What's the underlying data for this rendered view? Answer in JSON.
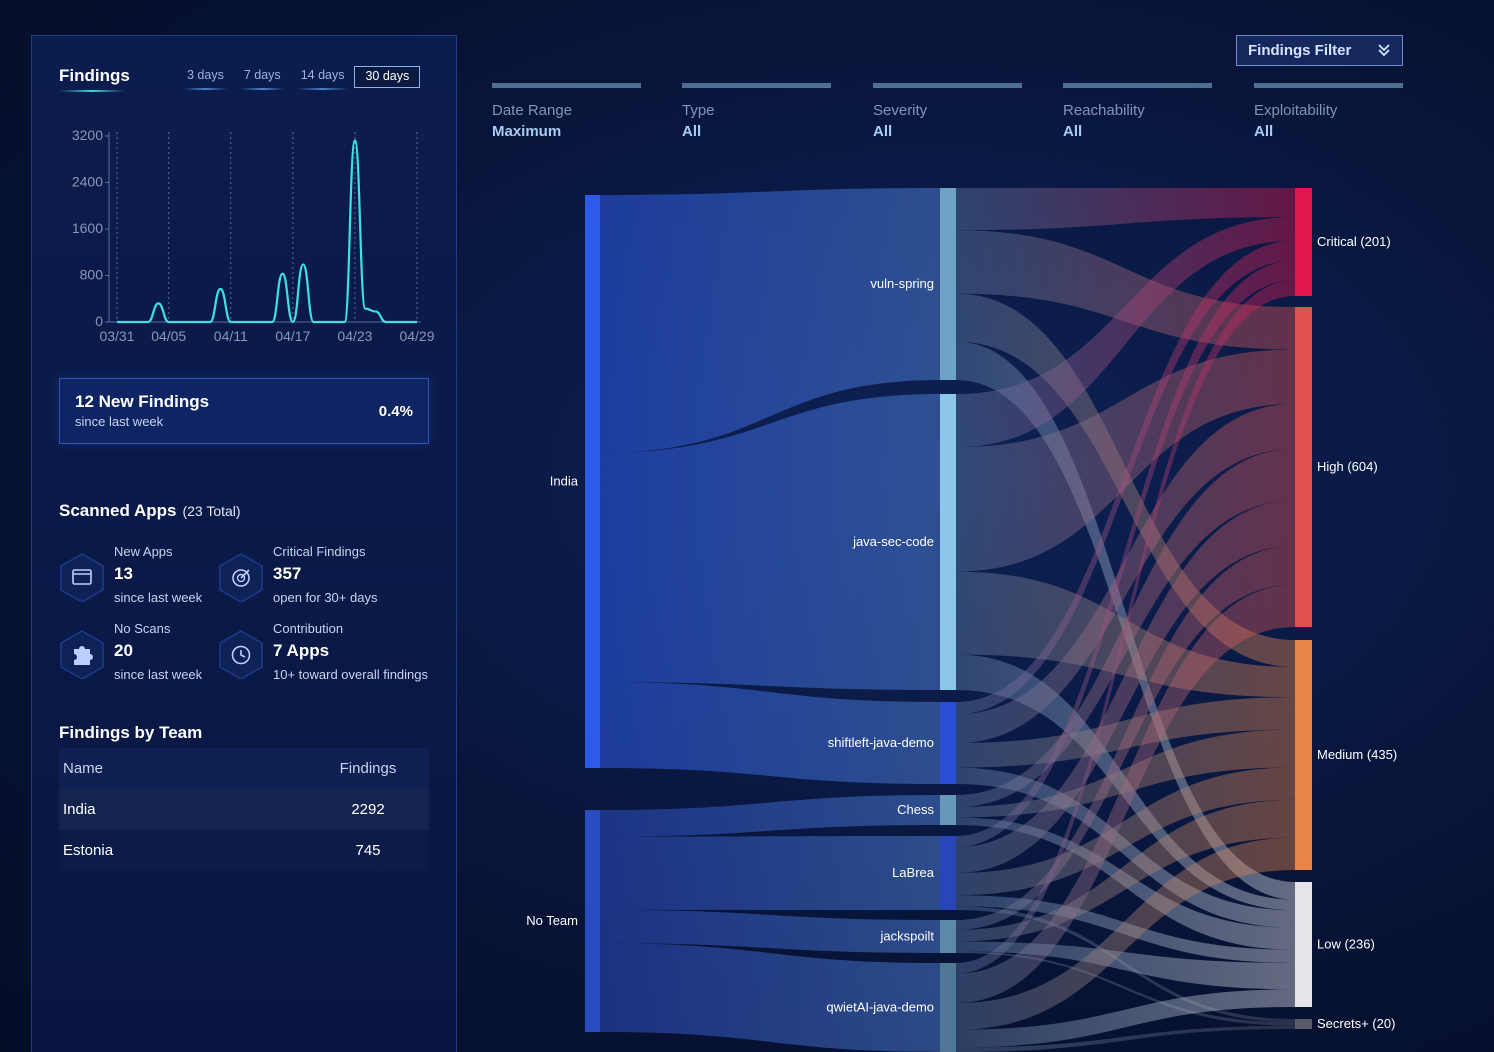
{
  "findings_panel": {
    "title": "Findings",
    "range_tabs": [
      "3 days",
      "7 days",
      "14 days",
      "30 days"
    ],
    "active_range": "30 days",
    "chart_data": {
      "type": "line",
      "x": [
        "03/31",
        "04/01",
        "04/02",
        "04/03",
        "04/04",
        "04/05",
        "04/06",
        "04/07",
        "04/08",
        "04/09",
        "04/10",
        "04/11",
        "04/12",
        "04/13",
        "04/14",
        "04/15",
        "04/16",
        "04/17",
        "04/18",
        "04/19",
        "04/20",
        "04/21",
        "04/22",
        "04/23",
        "04/24",
        "04/25",
        "04/26",
        "04/27",
        "04/28",
        "04/29"
      ],
      "values": [
        0,
        0,
        0,
        0,
        320,
        0,
        0,
        0,
        0,
        0,
        570,
        0,
        0,
        0,
        0,
        0,
        830,
        0,
        990,
        0,
        0,
        0,
        0,
        3120,
        230,
        180,
        0,
        0,
        0,
        0
      ],
      "ylim": [
        0,
        3200
      ],
      "yticks": [
        0,
        800,
        1600,
        2400,
        3200
      ],
      "xtick_labels": [
        "03/31",
        "04/05",
        "04/11",
        "04/17",
        "04/23",
        "04/29"
      ],
      "color": "#3ee0e0",
      "grid": "vertical dotted"
    },
    "new_findings": {
      "title": "12 New Findings",
      "subtitle": "since last week",
      "percent": "0.4%"
    },
    "scanned_apps": {
      "title": "Scanned Apps",
      "total": "(23 Total)",
      "stats": [
        {
          "label": "New Apps",
          "value": "13",
          "sub": "since last week",
          "icon": "window-icon"
        },
        {
          "label": "Critical Findings",
          "value": "357",
          "sub": "open for 30+ days",
          "icon": "target-icon"
        },
        {
          "label": "No Scans",
          "value": "20",
          "sub": "since last week",
          "icon": "puzzle-icon"
        },
        {
          "label": "Contribution",
          "value": "7 Apps",
          "sub": "10+ toward overall findings",
          "icon": "clock-icon"
        }
      ]
    },
    "teams": {
      "title": "Findings by Team",
      "columns": [
        "Name",
        "Findings"
      ],
      "rows": [
        {
          "name": "India",
          "findings": "2292"
        },
        {
          "name": "Estonia",
          "findings": "745"
        }
      ]
    }
  },
  "filter_button": {
    "label": "Findings Filter",
    "icon": "double-chevron-down-icon"
  },
  "facets": [
    {
      "label": "Date Range",
      "value": "Maximum"
    },
    {
      "label": "Type",
      "value": "All"
    },
    {
      "label": "Severity",
      "value": "All"
    },
    {
      "label": "Reachability",
      "value": "All"
    },
    {
      "label": "Exploitability",
      "value": "All"
    }
  ],
  "sankey": {
    "teams": [
      "India",
      "No Team"
    ],
    "apps": [
      "vuln-spring",
      "java-sec-code",
      "shiftleft-java-demo",
      "Chess",
      "LaBrea",
      "jackspoilt",
      "qwietAI-java-demo"
    ],
    "severities": [
      "Critical (201)",
      "High (604)",
      "Medium (435)",
      "Low (236)",
      "Secrets+ (20)"
    ],
    "colors": {
      "team_india": "#2d5ae6",
      "team_noteam": "#2a4cc0",
      "vuln-spring": "#6fa3c6",
      "java-sec-code": "#8cc6ea",
      "shiftleft-java-demo": "#2a4fd6",
      "Chess": "#6898b8",
      "LaBrea": "#2846b8",
      "jackspoilt": "#5d88a8",
      "qwietAI-java-demo": "#4f7896",
      "Critical": "#e0164e",
      "High": "#e05050",
      "Medium": "#e88448",
      "Low": "#e4e4ea",
      "Secrets+": "#5a5a6a"
    }
  }
}
